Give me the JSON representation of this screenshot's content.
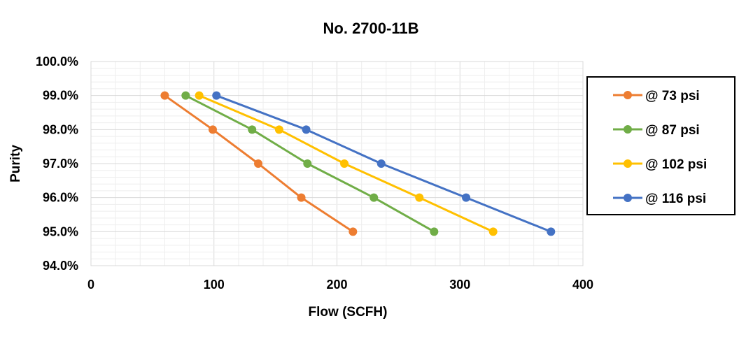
{
  "chart_data": {
    "type": "line",
    "title": "No. 2700-11B",
    "xlabel": "Flow (SCFH)",
    "ylabel": "Purity",
    "xlim": [
      0,
      400
    ],
    "ylim": [
      94.0,
      100.0
    ],
    "x_ticks": [
      0,
      100,
      200,
      300,
      400
    ],
    "y_ticks": [
      94,
      95,
      96,
      97,
      98,
      99,
      100
    ],
    "x_tick_labels": [
      "0",
      "100",
      "200",
      "300",
      "400"
    ],
    "y_tick_labels": [
      "94.0%",
      "95.0%",
      "96.0%",
      "97.0%",
      "98.0%",
      "99.0%",
      "100.0%"
    ],
    "grid": true,
    "legend_position": "right",
    "series": [
      {
        "name": "@ 73 psi",
        "color": "#ED7D31",
        "x": [
          60,
          99,
          136,
          171,
          213
        ],
        "y": [
          99,
          98,
          97,
          96,
          95
        ]
      },
      {
        "name": "@ 87 psi",
        "color": "#70AD47",
        "x": [
          77,
          131,
          176,
          230,
          279
        ],
        "y": [
          99,
          98,
          97,
          96,
          95
        ]
      },
      {
        "name": "@ 102 psi",
        "color": "#FFC000",
        "x": [
          88,
          153,
          206,
          267,
          327
        ],
        "y": [
          99,
          98,
          97,
          96,
          95
        ]
      },
      {
        "name": "@ 116 psi",
        "color": "#4472C4",
        "x": [
          102,
          175,
          236,
          305,
          374
        ],
        "y": [
          99,
          98,
          97,
          96,
          95
        ]
      }
    ]
  }
}
